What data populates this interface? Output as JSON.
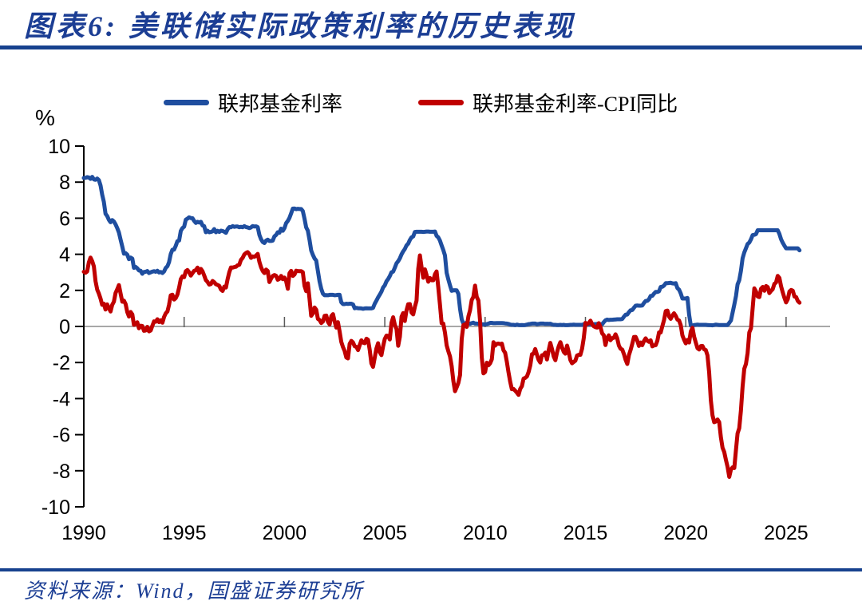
{
  "page": {
    "title": "图表6:  美联储实际政策利率的历史表现",
    "source": "资料来源：Wind，国盛证券研究所"
  },
  "colors": {
    "brand_blue": "#1C3E94",
    "rule_blue": "#17418E",
    "line_blue": "#1F4E9F",
    "line_red": "#C00000",
    "zero_line_gray": "#8C8C8C",
    "tick_gray": "#595959",
    "axis_text_black": "#000000"
  },
  "chart_data": {
    "type": "line",
    "unit_label": "%",
    "frequency": "monthly",
    "x_start_year": 1990,
    "x_start_month": 1,
    "x_end_year": 2025,
    "x_end_month": 9,
    "x_ticks": [
      1990,
      1995,
      2000,
      2005,
      2010,
      2015,
      2020,
      2025
    ],
    "y_ticks": [
      10,
      8,
      6,
      4,
      2,
      0,
      -2,
      -4,
      -6,
      -8,
      -10
    ],
    "ylim": [
      -10,
      10
    ],
    "grid": "zero-line-only",
    "legend_position": "top",
    "series": [
      {
        "name": "联邦基金利率",
        "color": "#1F4E9F",
        "values": [
          8.23,
          8.24,
          8.28,
          8.26,
          8.18,
          8.29,
          8.15,
          8.13,
          8.2,
          8.11,
          7.81,
          7.31,
          6.91,
          6.25,
          6.12,
          5.91,
          5.78,
          5.9,
          5.82,
          5.66,
          5.45,
          5.21,
          4.81,
          4.43,
          4.03,
          4.06,
          3.98,
          3.73,
          3.82,
          3.76,
          3.25,
          3.3,
          3.22,
          3.1,
          3.09,
          2.92,
          3.02,
          3.03,
          3.07,
          2.96,
          3.0,
          3.04,
          3.06,
          3.03,
          3.09,
          2.99,
          3.02,
          2.96,
          3.05,
          3.25,
          3.34,
          3.56,
          4.01,
          4.25,
          4.26,
          4.47,
          4.73,
          4.76,
          5.29,
          5.45,
          5.53,
          5.92,
          5.98,
          6.05,
          6.01,
          6.0,
          5.85,
          5.74,
          5.8,
          5.76,
          5.8,
          5.6,
          5.56,
          5.22,
          5.31,
          5.22,
          5.24,
          5.27,
          5.4,
          5.22,
          5.3,
          5.24,
          5.31,
          5.29,
          5.25,
          5.19,
          5.39,
          5.51,
          5.5,
          5.56,
          5.52,
          5.54,
          5.54,
          5.5,
          5.52,
          5.5,
          5.56,
          5.51,
          5.49,
          5.45,
          5.49,
          5.56,
          5.54,
          5.55,
          5.51,
          5.07,
          4.83,
          4.68,
          4.63,
          4.76,
          4.81,
          4.74,
          4.74,
          4.76,
          4.99,
          5.07,
          5.22,
          5.2,
          5.42,
          5.3,
          5.45,
          5.73,
          5.85,
          6.02,
          6.27,
          6.53,
          6.54,
          6.5,
          6.52,
          6.51,
          6.51,
          6.4,
          5.98,
          5.49,
          5.31,
          4.8,
          4.21,
          3.97,
          3.77,
          3.65,
          3.07,
          2.49,
          2.09,
          1.82,
          1.73,
          1.74,
          1.73,
          1.75,
          1.75,
          1.75,
          1.73,
          1.74,
          1.75,
          1.75,
          1.34,
          1.24,
          1.24,
          1.26,
          1.25,
          1.26,
          1.26,
          1.22,
          1.01,
          1.03,
          1.01,
          1.01,
          1.0,
          0.98,
          1.0,
          1.01,
          1.0,
          1.0,
          1.0,
          1.03,
          1.26,
          1.43,
          1.61,
          1.76,
          1.93,
          2.16,
          2.28,
          2.5,
          2.63,
          2.79,
          3.0,
          3.04,
          3.26,
          3.5,
          3.62,
          3.78,
          4.0,
          4.16,
          4.29,
          4.49,
          4.59,
          4.79,
          4.94,
          4.99,
          5.24,
          5.25,
          5.25,
          5.25,
          5.25,
          5.24,
          5.25,
          5.26,
          5.26,
          5.25,
          5.25,
          5.25,
          5.26,
          5.02,
          4.94,
          4.76,
          4.49,
          4.24,
          3.94,
          2.98,
          2.61,
          2.28,
          1.98,
          2.0,
          2.01,
          2.0,
          1.81,
          0.97,
          0.39,
          0.16,
          0.15,
          0.22,
          0.18,
          0.15,
          0.18,
          0.21,
          0.16,
          0.16,
          0.15,
          0.12,
          0.12,
          0.12,
          0.11,
          0.13,
          0.16,
          0.2,
          0.2,
          0.18,
          0.18,
          0.19,
          0.19,
          0.19,
          0.19,
          0.18,
          0.17,
          0.16,
          0.14,
          0.1,
          0.09,
          0.09,
          0.07,
          0.1,
          0.08,
          0.07,
          0.08,
          0.07,
          0.08,
          0.1,
          0.13,
          0.14,
          0.16,
          0.16,
          0.16,
          0.13,
          0.14,
          0.16,
          0.16,
          0.16,
          0.14,
          0.15,
          0.14,
          0.15,
          0.11,
          0.09,
          0.09,
          0.08,
          0.08,
          0.09,
          0.08,
          0.09,
          0.07,
          0.07,
          0.08,
          0.09,
          0.09,
          0.1,
          0.09,
          0.09,
          0.09,
          0.09,
          0.09,
          0.12,
          0.11,
          0.11,
          0.11,
          0.12,
          0.12,
          0.13,
          0.13,
          0.14,
          0.14,
          0.12,
          0.12,
          0.24,
          0.34,
          0.38,
          0.36,
          0.37,
          0.37,
          0.38,
          0.39,
          0.4,
          0.4,
          0.4,
          0.41,
          0.54,
          0.65,
          0.66,
          0.79,
          0.9,
          0.91,
          1.04,
          1.15,
          1.16,
          1.15,
          1.15,
          1.16,
          1.3,
          1.41,
          1.42,
          1.51,
          1.69,
          1.7,
          1.82,
          1.91,
          1.91,
          1.95,
          2.19,
          2.2,
          2.27,
          2.4,
          2.4,
          2.41,
          2.42,
          2.39,
          2.38,
          2.4,
          2.13,
          2.04,
          1.83,
          1.55,
          1.55,
          1.55,
          1.58,
          0.65,
          0.05,
          0.05,
          0.08,
          0.09,
          0.1,
          0.09,
          0.09,
          0.09,
          0.09,
          0.09,
          0.08,
          0.07,
          0.07,
          0.06,
          0.08,
          0.1,
          0.09,
          0.08,
          0.08,
          0.08,
          0.08,
          0.08,
          0.08,
          0.2,
          0.33,
          0.77,
          1.21,
          1.68,
          2.33,
          2.56,
          3.08,
          3.78,
          4.1,
          4.33,
          4.57,
          4.65,
          4.83,
          5.06,
          5.08,
          5.12,
          5.33,
          5.33,
          5.33,
          5.33,
          5.33,
          5.33,
          5.33,
          5.33,
          5.33,
          5.33,
          5.33,
          5.33,
          5.33,
          5.13,
          4.83,
          4.64,
          4.48,
          4.33,
          4.33,
          4.33,
          4.33,
          4.33,
          4.33,
          4.33,
          4.33,
          4.22
        ]
      },
      {
        "name": "联邦基金利率-CPI同比",
        "color": "#C00000",
        "derivation": "联邦基金利率 - CPI同比",
        "values": [
          3.03,
          2.98,
          3.05,
          3.55,
          3.82,
          3.62,
          3.33,
          2.51,
          2.04,
          1.82,
          1.54,
          1.2,
          1.26,
          0.94,
          1.22,
          1.02,
          0.83,
          1.2,
          1.37,
          1.86,
          2.06,
          2.29,
          1.82,
          1.37,
          1.43,
          1.24,
          0.79,
          0.55,
          0.8,
          0.67,
          0.09,
          0.15,
          0.23,
          -0.1,
          0.04,
          0.02,
          -0.24,
          -0.22,
          -0.02,
          -0.27,
          -0.22,
          0.04,
          0.28,
          0.26,
          0.4,
          0.24,
          0.34,
          0.21,
          0.53,
          0.73,
          0.83,
          1.2,
          1.72,
          1.76,
          1.49,
          1.57,
          1.77,
          2.15,
          2.62,
          2.78,
          2.73,
          3.06,
          3.13,
          3.0,
          2.82,
          2.96,
          3.09,
          3.12,
          3.26,
          2.95,
          3.19,
          3.06,
          2.83,
          2.57,
          2.47,
          2.32,
          2.35,
          2.52,
          2.45,
          2.34,
          2.3,
          2.25,
          2.05,
          1.97,
          2.21,
          2.16,
          2.63,
          3.01,
          3.27,
          3.26,
          3.29,
          3.31,
          3.39,
          3.42,
          3.69,
          3.8,
          3.99,
          4.07,
          4.12,
          4.01,
          3.8,
          3.88,
          3.86,
          3.93,
          4.02,
          3.58,
          3.28,
          3.07,
          2.96,
          3.15,
          3.08,
          2.46,
          2.65,
          2.8,
          2.85,
          2.81,
          2.59,
          2.64,
          2.8,
          2.62,
          2.71,
          2.51,
          2.09,
          2.95,
          3.08,
          2.8,
          2.88,
          3.09,
          3.07,
          3.06,
          3.06,
          3.01,
          2.25,
          1.96,
          2.39,
          1.53,
          0.59,
          0.72,
          1.05,
          0.93,
          0.42,
          0.36,
          0.19,
          0.27,
          0.59,
          0.6,
          0.25,
          0.11,
          0.57,
          0.68,
          0.27,
          -0.06,
          0.24,
          -0.28,
          -0.86,
          -1.14,
          -1.36,
          -1.72,
          -1.77,
          -0.96,
          -0.8,
          -0.89,
          -1.1,
          -1.13,
          -1.31,
          -1.03,
          -0.77,
          -0.9,
          -0.93,
          -0.68,
          -0.74,
          -1.29,
          -2.05,
          -2.24,
          -1.73,
          -1.22,
          -0.93,
          -1.43,
          -1.59,
          -1.1,
          -0.69,
          -0.51,
          -0.52,
          -0.72,
          0.2,
          0.51,
          0.09,
          -0.14,
          -1.07,
          -0.57,
          0.54,
          0.74,
          0.3,
          0.89,
          1.23,
          1.24,
          0.77,
          0.67,
          1.09,
          1.43,
          3.19,
          3.94,
          3.28,
          2.7,
          3.17,
          2.84,
          2.48,
          2.68,
          2.56,
          2.56,
          2.9,
          3.05,
          2.18,
          1.22,
          0.18,
          0.16,
          -0.34,
          -1.05,
          -1.37,
          -1.66,
          -2.2,
          -3.02,
          -3.59,
          -3.37,
          -3.13,
          -2.69,
          -0.68,
          0.07,
          0.12,
          -0.02,
          0.56,
          0.89,
          1.46,
          1.64,
          2.26,
          1.64,
          1.44,
          0.3,
          -1.72,
          -2.6,
          -2.52,
          -2.01,
          -2.15,
          -2.04,
          -1.82,
          -0.87,
          -1.06,
          -0.96,
          -0.95,
          -0.98,
          -0.95,
          -1.32,
          -1.46,
          -1.95,
          -2.54,
          -3.06,
          -3.48,
          -3.47,
          -3.56,
          -3.67,
          -3.79,
          -3.46,
          -3.31,
          -2.89,
          -2.85,
          -2.77,
          -2.52,
          -2.16,
          -1.54,
          -1.5,
          -1.25,
          -1.56,
          -1.85,
          -2.0,
          -1.6,
          -1.58,
          -1.45,
          -1.83,
          -1.33,
          -0.91,
          -1.25,
          -1.66,
          -1.87,
          -1.44,
          -1.1,
          -0.87,
          -1.16,
          -1.41,
          -1.51,
          -1.06,
          -1.43,
          -1.86,
          -2.04,
          -1.97,
          -1.9,
          -1.61,
          -1.57,
          -1.57,
          -1.23,
          -0.64,
          0.2,
          0.14,
          0.18,
          0.32,
          0.12,
          0.01,
          -0.04,
          -0.06,
          0.18,
          -0.05,
          -0.38,
          -0.49,
          -1.03,
          -0.64,
          -0.49,
          -0.76,
          -0.65,
          -0.63,
          -0.44,
          -0.66,
          -1.06,
          -1.24,
          -1.28,
          -1.53,
          -1.85,
          -2.08,
          -1.59,
          -1.3,
          -0.96,
          -0.59,
          -0.58,
          -0.78,
          -1.08,
          -0.89,
          -1.04,
          -0.81,
          -0.66,
          -0.79,
          -0.85,
          -0.77,
          -1.1,
          -1.05,
          -1.04,
          -0.79,
          -0.33,
          -0.33,
          0.02,
          0.36,
          0.85,
          0.88,
          0.55,
          0.42,
          0.6,
          0.73,
          0.59,
          0.38,
          0.33,
          0.07,
          -0.5,
          -0.74,
          -0.94,
          -0.75,
          -0.89,
          -0.28,
          -0.07,
          -0.57,
          -0.9,
          -1.21,
          -1.28,
          -1.09,
          -1.08,
          -1.27,
          -1.31,
          -1.6,
          -2.55,
          -4.09,
          -4.93,
          -5.31,
          -5.27,
          -5.16,
          -5.31,
          -6.14,
          -6.73,
          -6.96,
          -7.4,
          -7.79,
          -8.34,
          -7.93,
          -7.81,
          -7.85,
          -6.84,
          -5.93,
          -5.64,
          -4.67,
          -3.33,
          -2.35,
          -2.08,
          -1.47,
          -0.33,
          -0.1,
          1.01,
          2.11,
          1.94,
          1.66,
          1.63,
          2.09,
          2.19,
          1.98,
          2.24,
          2.18,
          1.85,
          1.97,
          2.06,
          2.36,
          2.44,
          2.8,
          2.69,
          2.23,
          1.89,
          1.59,
          1.33,
          1.51,
          1.94,
          2.02,
          1.98,
          1.66,
          1.63,
          1.41,
          1.32
        ]
      }
    ]
  }
}
